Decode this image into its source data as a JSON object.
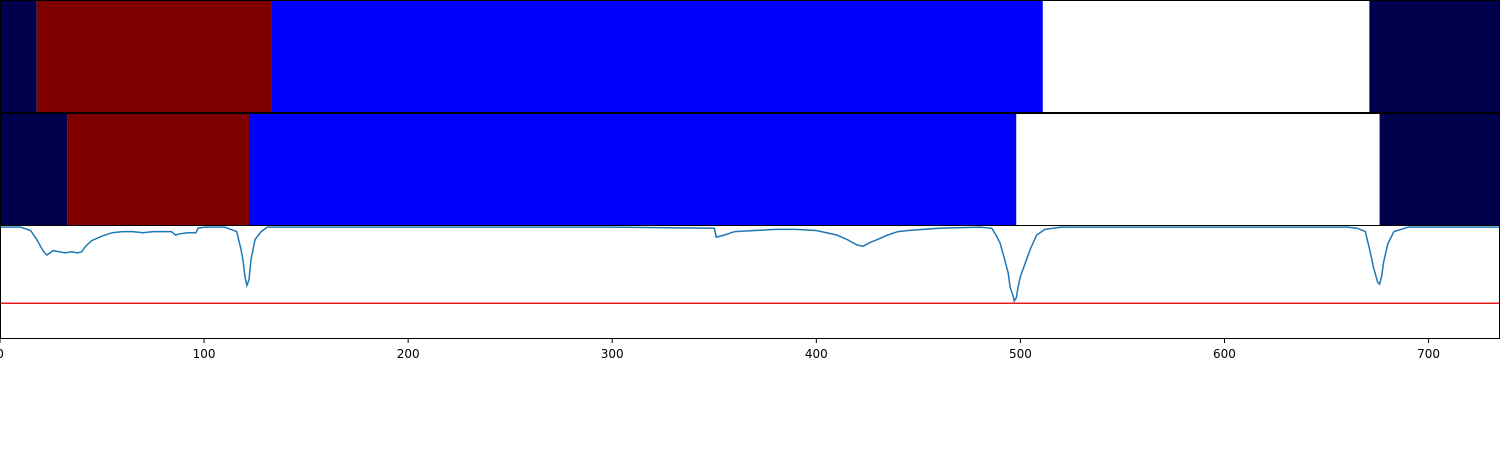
{
  "chart_data": [
    {
      "type": "heatmap",
      "colors": {
        "navy": "#00004c",
        "maroon": "#800000",
        "blue": "#0000ff",
        "white": "#ffffff"
      },
      "segments": [
        {
          "start": 0,
          "end": 18,
          "color": "#00004c"
        },
        {
          "start": 18,
          "end": 133,
          "color": "#800000"
        },
        {
          "start": 133,
          "end": 511,
          "color": "#0000ff"
        },
        {
          "start": 511,
          "end": 671,
          "color": "#ffffff"
        },
        {
          "start": 671,
          "end": 735,
          "color": "#00004c"
        }
      ]
    },
    {
      "type": "heatmap",
      "colors": {
        "navy": "#00004c",
        "maroon": "#800000",
        "blue": "#0000ff",
        "white": "#ffffff"
      },
      "segments": [
        {
          "start": 0,
          "end": 33,
          "color": "#00004c"
        },
        {
          "start": 33,
          "end": 122,
          "color": "#800000"
        },
        {
          "start": 122,
          "end": 498,
          "color": "#0000ff"
        },
        {
          "start": 498,
          "end": 676,
          "color": "#ffffff"
        },
        {
          "start": 676,
          "end": 735,
          "color": "#00004c"
        }
      ]
    },
    {
      "type": "line",
      "xlim": [
        0,
        735
      ],
      "ylim": [
        0,
        1
      ],
      "xticks": [
        "0",
        "100",
        "200",
        "300",
        "400",
        "500",
        "600",
        "700"
      ],
      "threshold": {
        "y": 0.31,
        "color": "#e41a1c"
      },
      "series": [
        {
          "color": "#1f77b4",
          "points": [
            [
              0,
              0.99
            ],
            [
              10,
              0.99
            ],
            [
              15,
              0.96
            ],
            [
              18,
              0.88
            ],
            [
              21,
              0.78
            ],
            [
              23,
              0.74
            ],
            [
              26,
              0.78
            ],
            [
              29,
              0.77
            ],
            [
              32,
              0.76
            ],
            [
              35,
              0.77
            ],
            [
              38,
              0.76
            ],
            [
              40,
              0.77
            ],
            [
              42,
              0.82
            ],
            [
              45,
              0.87
            ],
            [
              50,
              0.91
            ],
            [
              55,
              0.94
            ],
            [
              60,
              0.95
            ],
            [
              65,
              0.95
            ],
            [
              70,
              0.94
            ],
            [
              75,
              0.95
            ],
            [
              80,
              0.95
            ],
            [
              84,
              0.95
            ],
            [
              86,
              0.92
            ],
            [
              88,
              0.93
            ],
            [
              92,
              0.94
            ],
            [
              96,
              0.94
            ],
            [
              97,
              0.98
            ],
            [
              100,
              0.99
            ],
            [
              110,
              0.99
            ],
            [
              116,
              0.95
            ],
            [
              118,
              0.8
            ],
            [
              119,
              0.7
            ],
            [
              120,
              0.55
            ],
            [
              121,
              0.47
            ],
            [
              122,
              0.52
            ],
            [
              123,
              0.7
            ],
            [
              125,
              0.88
            ],
            [
              128,
              0.95
            ],
            [
              131,
              0.99
            ],
            [
              140,
              0.99
            ],
            [
              200,
              0.99
            ],
            [
              300,
              0.99
            ],
            [
              350,
              0.98
            ],
            [
              351,
              0.9
            ],
            [
              355,
              0.92
            ],
            [
              360,
              0.95
            ],
            [
              370,
              0.96
            ],
            [
              380,
              0.97
            ],
            [
              390,
              0.97
            ],
            [
              400,
              0.96
            ],
            [
              410,
              0.92
            ],
            [
              415,
              0.88
            ],
            [
              420,
              0.83
            ],
            [
              423,
              0.82
            ],
            [
              426,
              0.85
            ],
            [
              430,
              0.88
            ],
            [
              435,
              0.92
            ],
            [
              440,
              0.95
            ],
            [
              445,
              0.96
            ],
            [
              460,
              0.98
            ],
            [
              480,
              0.99
            ],
            [
              486,
              0.98
            ],
            [
              488,
              0.92
            ],
            [
              490,
              0.85
            ],
            [
              492,
              0.72
            ],
            [
              494,
              0.58
            ],
            [
              495,
              0.45
            ],
            [
              496,
              0.4
            ],
            [
              497,
              0.33
            ],
            [
              498,
              0.36
            ],
            [
              499,
              0.47
            ],
            [
              500,
              0.55
            ],
            [
              502,
              0.65
            ],
            [
              505,
              0.8
            ],
            [
              508,
              0.92
            ],
            [
              512,
              0.97
            ],
            [
              520,
              0.99
            ],
            [
              600,
              0.99
            ],
            [
              660,
              0.99
            ],
            [
              665,
              0.98
            ],
            [
              669,
              0.95
            ],
            [
              671,
              0.8
            ],
            [
              673,
              0.63
            ],
            [
              675,
              0.5
            ],
            [
              676,
              0.48
            ],
            [
              677,
              0.55
            ],
            [
              678,
              0.68
            ],
            [
              680,
              0.84
            ],
            [
              683,
              0.95
            ],
            [
              690,
              0.99
            ],
            [
              735,
              0.99
            ]
          ]
        }
      ]
    }
  ]
}
